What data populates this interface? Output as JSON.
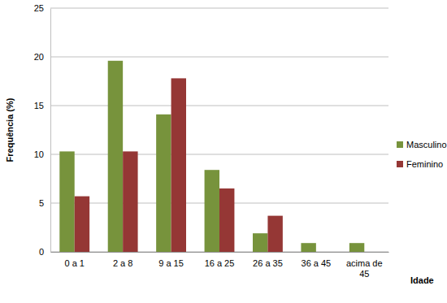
{
  "chart_data": {
    "type": "bar",
    "x_label": "Idade",
    "y_label": "Frequência (%)",
    "categories": [
      "0 a 1",
      "2 a 8",
      "9 a 15",
      "16 a 25",
      "26 a 35",
      "36 a 45",
      "acima de 45"
    ],
    "series": [
      {
        "name": "Masculino",
        "color": "#77933c",
        "values": [
          10.3,
          19.6,
          14.1,
          8.4,
          1.9,
          0.9,
          0.9
        ]
      },
      {
        "name": "Feminino",
        "color": "#953735",
        "values": [
          5.7,
          10.3,
          17.8,
          6.5,
          3.7,
          0,
          0
        ]
      }
    ],
    "ylim": [
      0,
      25
    ],
    "yticks": [
      0,
      5,
      10,
      15,
      20,
      25
    ],
    "grid": true,
    "legend": "right"
  }
}
